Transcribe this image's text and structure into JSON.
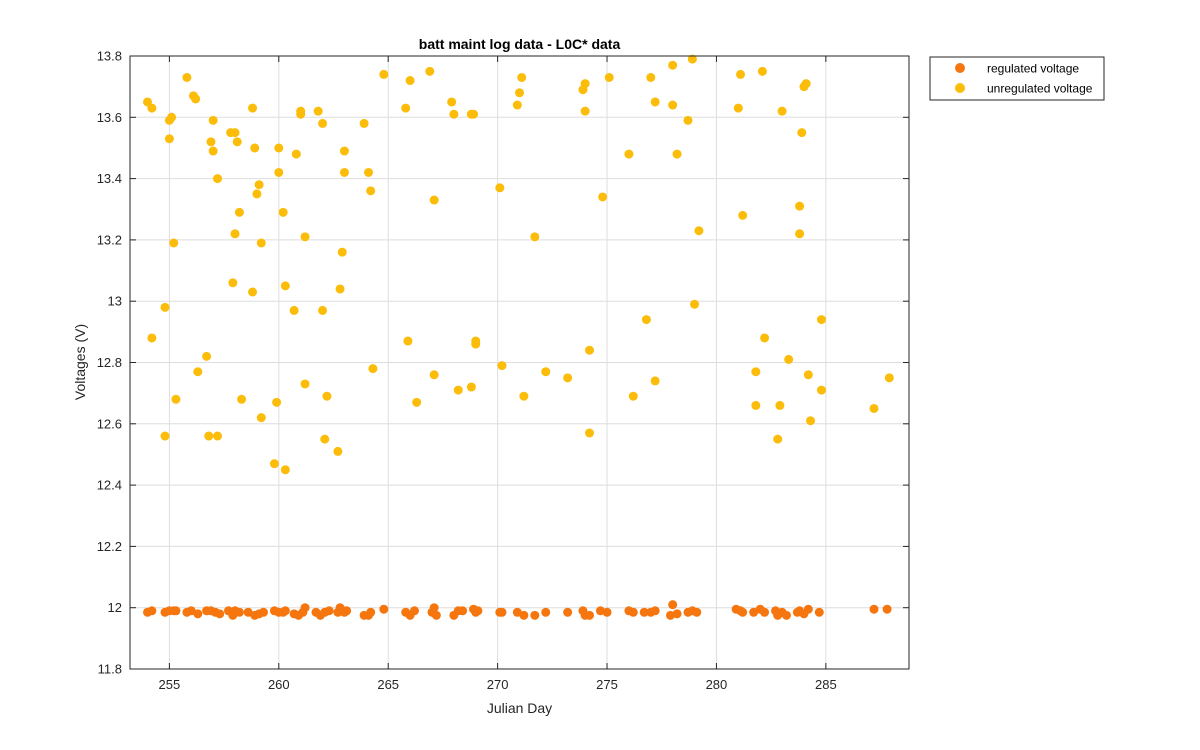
{
  "chart_data": {
    "type": "scatter",
    "title": "batt maint log data - L0C* data",
    "xlabel": "Julian Day",
    "ylabel": "Voltages (V)",
    "xlim": [
      253.2,
      288.8
    ],
    "ylim": [
      11.8,
      13.8
    ],
    "xticks": [
      255,
      260,
      265,
      270,
      275,
      280,
      285
    ],
    "yticks": [
      11.8,
      12,
      12.2,
      12.4,
      12.6,
      12.8,
      13,
      13.2,
      13.4,
      13.6,
      13.8
    ],
    "ytick_labels": [
      "11.8",
      "12",
      "12.2",
      "12.4",
      "12.6",
      "12.8",
      "13",
      "13.2",
      "13.4",
      "13.6",
      "13.8"
    ],
    "grid": true,
    "legend_position": "outside-top-right",
    "series": [
      {
        "name": "regulated voltage",
        "color": "#f5760f",
        "points": [
          [
            254.0,
            11.985
          ],
          [
            254.2,
            11.99
          ],
          [
            254.8,
            11.985
          ],
          [
            255.0,
            11.99
          ],
          [
            255.2,
            11.99
          ],
          [
            255.3,
            11.99
          ],
          [
            255.8,
            11.985
          ],
          [
            256.0,
            11.99
          ],
          [
            256.3,
            11.98
          ],
          [
            256.7,
            11.99
          ],
          [
            256.9,
            11.99
          ],
          [
            257.1,
            11.985
          ],
          [
            257.3,
            11.98
          ],
          [
            257.7,
            11.99
          ],
          [
            257.9,
            11.975
          ],
          [
            258.0,
            11.99
          ],
          [
            258.2,
            11.985
          ],
          [
            258.6,
            11.985
          ],
          [
            258.9,
            11.975
          ],
          [
            259.1,
            11.98
          ],
          [
            259.3,
            11.985
          ],
          [
            259.8,
            11.99
          ],
          [
            260.0,
            11.985
          ],
          [
            260.2,
            11.985
          ],
          [
            260.3,
            11.99
          ],
          [
            260.7,
            11.98
          ],
          [
            260.9,
            11.975
          ],
          [
            261.1,
            11.985
          ],
          [
            261.2,
            12.0
          ],
          [
            261.7,
            11.985
          ],
          [
            261.9,
            11.975
          ],
          [
            262.1,
            11.985
          ],
          [
            262.3,
            11.99
          ],
          [
            262.7,
            11.985
          ],
          [
            262.8,
            12.0
          ],
          [
            263.0,
            11.985
          ],
          [
            263.1,
            11.99
          ],
          [
            263.9,
            11.975
          ],
          [
            264.1,
            11.975
          ],
          [
            264.2,
            11.985
          ],
          [
            264.8,
            11.995
          ],
          [
            265.8,
            11.985
          ],
          [
            266.0,
            11.975
          ],
          [
            266.2,
            11.99
          ],
          [
            267.0,
            11.985
          ],
          [
            267.1,
            12.0
          ],
          [
            267.2,
            11.975
          ],
          [
            268.0,
            11.975
          ],
          [
            268.2,
            11.99
          ],
          [
            268.4,
            11.99
          ],
          [
            268.9,
            11.995
          ],
          [
            269.0,
            11.985
          ],
          [
            269.1,
            11.99
          ],
          [
            270.1,
            11.985
          ],
          [
            270.2,
            11.985
          ],
          [
            270.9,
            11.985
          ],
          [
            271.2,
            11.975
          ],
          [
            271.7,
            11.975
          ],
          [
            272.2,
            11.985
          ],
          [
            273.2,
            11.985
          ],
          [
            273.9,
            11.99
          ],
          [
            274.0,
            11.975
          ],
          [
            274.2,
            11.975
          ],
          [
            274.7,
            11.99
          ],
          [
            275.0,
            11.985
          ],
          [
            276.0,
            11.99
          ],
          [
            276.2,
            11.985
          ],
          [
            276.7,
            11.985
          ],
          [
            277.0,
            11.985
          ],
          [
            277.2,
            11.99
          ],
          [
            277.9,
            11.975
          ],
          [
            278.0,
            12.01
          ],
          [
            278.2,
            11.98
          ],
          [
            278.7,
            11.985
          ],
          [
            278.9,
            11.99
          ],
          [
            279.1,
            11.985
          ],
          [
            280.9,
            11.995
          ],
          [
            281.1,
            11.99
          ],
          [
            281.2,
            11.985
          ],
          [
            281.7,
            11.985
          ],
          [
            282.0,
            11.995
          ],
          [
            282.2,
            11.985
          ],
          [
            282.7,
            11.99
          ],
          [
            282.8,
            11.975
          ],
          [
            283.0,
            11.985
          ],
          [
            283.2,
            11.975
          ],
          [
            283.7,
            11.985
          ],
          [
            283.8,
            11.99
          ],
          [
            284.0,
            11.98
          ],
          [
            284.2,
            11.995
          ],
          [
            284.7,
            11.985
          ],
          [
            287.2,
            11.995
          ],
          [
            287.8,
            11.995
          ]
        ]
      },
      {
        "name": "unregulated voltage",
        "color": "#fbbd0a",
        "points": [
          [
            254.0,
            13.65
          ],
          [
            254.2,
            13.63
          ],
          [
            254.2,
            12.88
          ],
          [
            254.8,
            12.98
          ],
          [
            254.8,
            12.56
          ],
          [
            255.0,
            13.59
          ],
          [
            255.0,
            13.53
          ],
          [
            255.1,
            13.6
          ],
          [
            255.2,
            13.19
          ],
          [
            255.3,
            12.68
          ],
          [
            255.8,
            13.73
          ],
          [
            256.1,
            13.67
          ],
          [
            256.2,
            13.66
          ],
          [
            256.3,
            12.77
          ],
          [
            256.7,
            12.82
          ],
          [
            256.8,
            12.56
          ],
          [
            256.9,
            13.52
          ],
          [
            257.0,
            13.59
          ],
          [
            257.0,
            13.49
          ],
          [
            257.2,
            13.4
          ],
          [
            257.2,
            12.56
          ],
          [
            257.8,
            13.55
          ],
          [
            257.9,
            13.06
          ],
          [
            258.0,
            13.55
          ],
          [
            258.0,
            13.22
          ],
          [
            258.1,
            13.52
          ],
          [
            258.2,
            13.29
          ],
          [
            258.3,
            12.68
          ],
          [
            258.8,
            13.63
          ],
          [
            258.8,
            13.03
          ],
          [
            258.9,
            13.5
          ],
          [
            259.0,
            13.35
          ],
          [
            259.1,
            13.38
          ],
          [
            259.2,
            13.19
          ],
          [
            259.2,
            12.62
          ],
          [
            259.8,
            12.47
          ],
          [
            259.9,
            12.67
          ],
          [
            260.0,
            13.5
          ],
          [
            260.0,
            13.42
          ],
          [
            260.2,
            13.29
          ],
          [
            260.3,
            13.05
          ],
          [
            260.3,
            12.45
          ],
          [
            260.7,
            12.97
          ],
          [
            260.8,
            13.48
          ],
          [
            261.0,
            13.62
          ],
          [
            261.0,
            13.61
          ],
          [
            261.2,
            13.21
          ],
          [
            261.2,
            12.73
          ],
          [
            261.8,
            13.62
          ],
          [
            262.0,
            13.58
          ],
          [
            262.0,
            12.97
          ],
          [
            262.1,
            12.55
          ],
          [
            262.2,
            12.69
          ],
          [
            262.7,
            12.51
          ],
          [
            262.8,
            13.04
          ],
          [
            262.9,
            13.16
          ],
          [
            263.0,
            13.42
          ],
          [
            263.0,
            13.49
          ],
          [
            263.9,
            13.58
          ],
          [
            264.1,
            13.42
          ],
          [
            264.2,
            13.36
          ],
          [
            264.3,
            12.78
          ],
          [
            264.8,
            13.74
          ],
          [
            265.8,
            13.63
          ],
          [
            265.9,
            12.87
          ],
          [
            266.0,
            13.72
          ],
          [
            266.3,
            12.67
          ],
          [
            266.9,
            13.75
          ],
          [
            267.1,
            13.33
          ],
          [
            267.1,
            12.76
          ],
          [
            267.9,
            13.65
          ],
          [
            268.0,
            13.61
          ],
          [
            268.2,
            12.71
          ],
          [
            268.8,
            12.72
          ],
          [
            268.8,
            13.61
          ],
          [
            268.9,
            13.61
          ],
          [
            269.0,
            12.87
          ],
          [
            269.0,
            12.86
          ],
          [
            270.1,
            13.37
          ],
          [
            270.2,
            12.79
          ],
          [
            270.9,
            13.64
          ],
          [
            271.0,
            13.68
          ],
          [
            271.1,
            13.73
          ],
          [
            271.2,
            12.69
          ],
          [
            271.7,
            13.21
          ],
          [
            272.2,
            12.77
          ],
          [
            273.2,
            12.75
          ],
          [
            273.9,
            13.69
          ],
          [
            274.0,
            13.71
          ],
          [
            274.0,
            13.62
          ],
          [
            274.2,
            12.84
          ],
          [
            274.2,
            12.57
          ],
          [
            274.8,
            13.34
          ],
          [
            275.1,
            13.73
          ],
          [
            276.0,
            13.48
          ],
          [
            276.2,
            12.69
          ],
          [
            276.8,
            12.94
          ],
          [
            277.0,
            13.73
          ],
          [
            277.2,
            13.65
          ],
          [
            277.2,
            12.74
          ],
          [
            278.0,
            13.77
          ],
          [
            278.0,
            13.64
          ],
          [
            278.2,
            13.48
          ],
          [
            278.7,
            13.59
          ],
          [
            278.9,
            13.79
          ],
          [
            279.0,
            12.99
          ],
          [
            279.2,
            13.23
          ],
          [
            281.0,
            13.63
          ],
          [
            281.1,
            13.74
          ],
          [
            281.2,
            13.28
          ],
          [
            281.8,
            12.77
          ],
          [
            281.8,
            12.66
          ],
          [
            282.1,
            13.75
          ],
          [
            282.2,
            12.88
          ],
          [
            282.8,
            12.55
          ],
          [
            282.9,
            12.66
          ],
          [
            283.0,
            13.62
          ],
          [
            283.3,
            12.81
          ],
          [
            283.8,
            13.31
          ],
          [
            283.8,
            13.22
          ],
          [
            283.9,
            13.55
          ],
          [
            284.0,
            13.7
          ],
          [
            284.1,
            13.71
          ],
          [
            284.2,
            12.76
          ],
          [
            284.3,
            12.61
          ],
          [
            284.8,
            12.94
          ],
          [
            284.8,
            12.71
          ],
          [
            287.2,
            12.65
          ],
          [
            287.9,
            12.75
          ]
        ]
      }
    ]
  }
}
